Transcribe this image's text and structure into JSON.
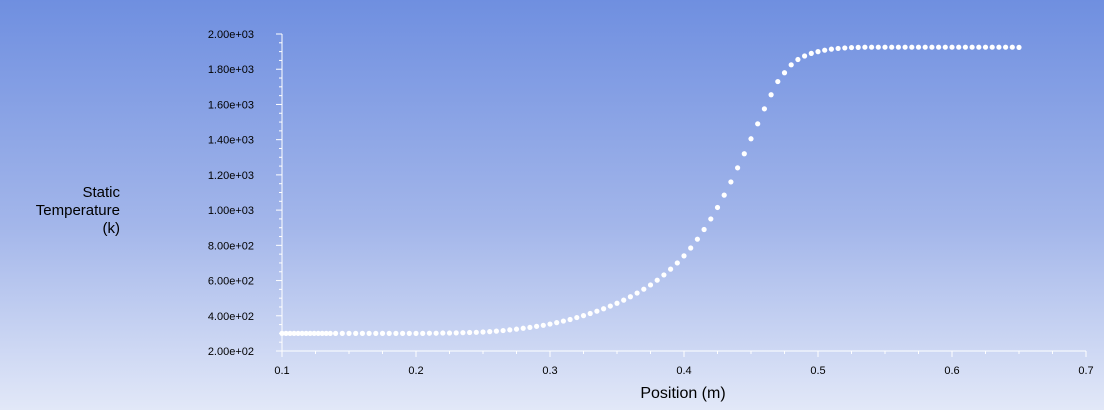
{
  "chart_data": {
    "type": "scatter",
    "xlabel": "Position (m)",
    "ylabel_lines": [
      "Static",
      "Temperature",
      "(k)"
    ],
    "xlim": [
      0.1,
      0.7
    ],
    "ylim": [
      200,
      2000
    ],
    "x_ticks": [
      "0.1",
      "0.2",
      "0.3",
      "0.4",
      "0.5",
      "0.6",
      "0.7"
    ],
    "y_ticks": [
      "2.00e+02",
      "4.00e+02",
      "6.00e+02",
      "8.00e+02",
      "1.00e+03",
      "1.20e+03",
      "1.40e+03",
      "1.60e+03",
      "1.80e+03",
      "2.00e+03"
    ],
    "marker_color": "#ffffff",
    "series": [
      {
        "x": [
          0.1,
          0.103,
          0.106,
          0.109,
          0.112,
          0.115,
          0.118,
          0.121,
          0.124,
          0.127,
          0.13,
          0.133,
          0.136,
          0.14,
          0.145,
          0.15,
          0.155,
          0.16,
          0.165,
          0.17,
          0.175,
          0.18,
          0.185,
          0.19,
          0.195,
          0.2,
          0.205,
          0.21,
          0.215,
          0.22,
          0.225,
          0.23,
          0.235,
          0.24,
          0.245,
          0.25,
          0.255,
          0.26,
          0.265,
          0.27,
          0.275,
          0.28,
          0.285,
          0.29,
          0.295,
          0.3,
          0.305,
          0.31,
          0.315,
          0.32,
          0.325,
          0.33,
          0.335,
          0.34,
          0.345,
          0.35,
          0.355,
          0.36,
          0.365,
          0.37,
          0.375,
          0.38,
          0.385,
          0.39,
          0.395,
          0.4,
          0.405,
          0.41,
          0.415,
          0.42,
          0.425,
          0.43,
          0.435,
          0.44,
          0.445,
          0.45,
          0.455,
          0.46,
          0.465,
          0.47,
          0.475,
          0.48,
          0.485,
          0.49,
          0.495,
          0.5,
          0.505,
          0.51,
          0.515,
          0.52,
          0.525,
          0.53,
          0.535,
          0.54,
          0.545,
          0.55,
          0.555,
          0.56,
          0.565,
          0.57,
          0.575,
          0.58,
          0.585,
          0.59,
          0.595,
          0.6,
          0.605,
          0.61,
          0.615,
          0.62,
          0.625,
          0.63,
          0.635,
          0.64,
          0.645,
          0.65
        ],
        "y": [
          300,
          300,
          300,
          300,
          300,
          300,
          300,
          300,
          300,
          300,
          300,
          300,
          300,
          300,
          300,
          300,
          300,
          300,
          300,
          300,
          300,
          300,
          300,
          300,
          300,
          300,
          300,
          301,
          301,
          302,
          302,
          303,
          304,
          305,
          306,
          308,
          310,
          313,
          316,
          320,
          324,
          329,
          334,
          340,
          346,
          353,
          361,
          370,
          379,
          390,
          401,
          413,
          426,
          440,
          455,
          471,
          489,
          508,
          529,
          551,
          575,
          602,
          632,
          665,
          700,
          740,
          785,
          835,
          890,
          950,
          1015,
          1085,
          1160,
          1240,
          1320,
          1405,
          1490,
          1575,
          1655,
          1730,
          1780,
          1825,
          1855,
          1875,
          1890,
          1900,
          1908,
          1914,
          1918,
          1921,
          1923,
          1924,
          1925,
          1925,
          1925,
          1925,
          1925,
          1925,
          1925,
          1925,
          1925,
          1925,
          1925,
          1925,
          1925,
          1925,
          1925,
          1925,
          1925,
          1925,
          1925,
          1925,
          1925,
          1925,
          1925,
          1924
        ]
      }
    ]
  }
}
